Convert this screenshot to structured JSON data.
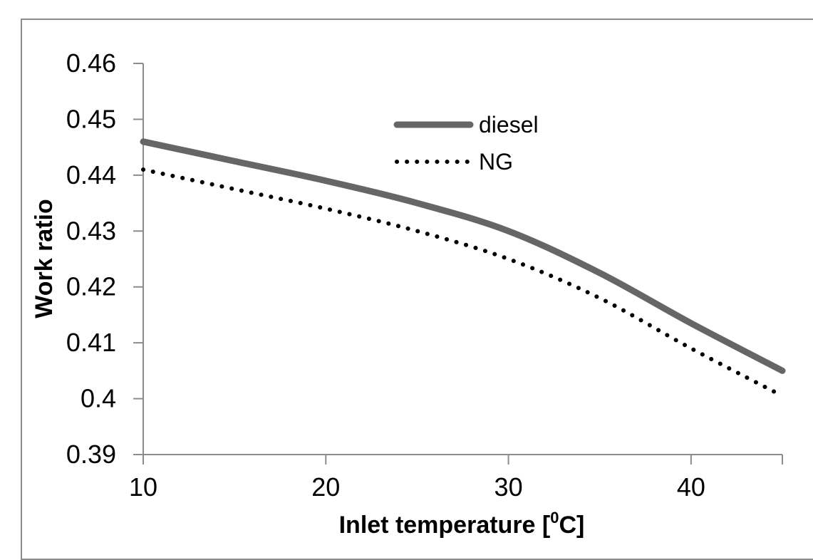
{
  "chart_data": {
    "type": "line",
    "title": "",
    "xlabel_main": "Inlet temperature [",
    "xlabel_sup": "0",
    "xlabel_end": "C]",
    "ylabel": "Work ratio",
    "xlim": [
      10,
      45
    ],
    "ylim": [
      0.39,
      0.46
    ],
    "x_ticks": [
      10,
      20,
      30,
      40
    ],
    "y_ticks": [
      0.39,
      0.4,
      0.41,
      0.42,
      0.43,
      0.44,
      0.45,
      0.46
    ],
    "y_tick_labels": [
      "0.39",
      "0.4",
      "0.41",
      "0.42",
      "0.43",
      "0.44",
      "0.45",
      "0.46"
    ],
    "x_tick_labels": [
      "10",
      "20",
      "30",
      "40"
    ],
    "grid": false,
    "legend_position": "top-center",
    "series": [
      {
        "name": "diesel",
        "style": "solid",
        "color": "#666666",
        "x": [
          10,
          15,
          20,
          25,
          30,
          35,
          40,
          45
        ],
        "y": [
          0.446,
          0.4425,
          0.439,
          0.435,
          0.43,
          0.4225,
          0.4135,
          0.405
        ]
      },
      {
        "name": "NG",
        "style": "dotted",
        "color": "#000000",
        "x": [
          10,
          15,
          20,
          25,
          30,
          35,
          40,
          45
        ],
        "y": [
          0.441,
          0.4375,
          0.434,
          0.43,
          0.425,
          0.418,
          0.409,
          0.4005
        ]
      }
    ]
  }
}
